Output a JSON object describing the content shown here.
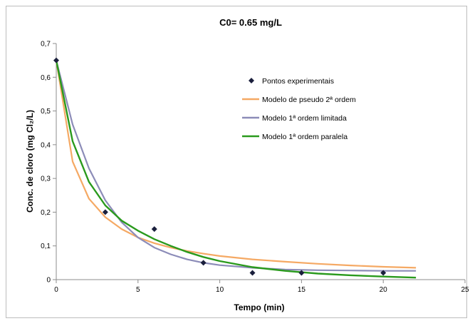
{
  "chart_data": {
    "type": "line",
    "title": "C0= 0.65 mg/L",
    "xlabel": "Tempo (min)",
    "ylabel": "Conc. de cloro (mg Cl₂/L)",
    "xlim": [
      0,
      25
    ],
    "ylim": [
      0,
      0.7
    ],
    "xticks": [
      0,
      5,
      10,
      15,
      20,
      25
    ],
    "yticks": [
      "0",
      "0,1",
      "0,2",
      "0,3",
      "0,4",
      "0,5",
      "0,6",
      "0,7"
    ],
    "grid": false,
    "legend_position": "upper-right",
    "series": [
      {
        "name": "Pontos experimentais",
        "kind": "scatter",
        "marker": "diamond",
        "color": "#1a1f3c",
        "x": [
          0,
          3,
          6,
          9,
          12,
          15,
          20
        ],
        "y": [
          0.65,
          0.2,
          0.15,
          0.05,
          0.02,
          0.02,
          0.02
        ]
      },
      {
        "name": "Modelo de pseudo 2ª ordem",
        "kind": "line",
        "color": "#f5a964",
        "x": [
          0,
          1,
          2,
          3,
          4,
          5,
          6,
          7,
          8,
          9,
          10,
          12,
          14,
          16,
          18,
          20,
          22
        ],
        "y": [
          0.65,
          0.35,
          0.24,
          0.185,
          0.15,
          0.125,
          0.108,
          0.095,
          0.085,
          0.077,
          0.07,
          0.06,
          0.053,
          0.047,
          0.042,
          0.038,
          0.035
        ]
      },
      {
        "name": "Modelo 1ª ordem limitada",
        "kind": "line",
        "color": "#8c8cb8",
        "x": [
          0,
          1,
          2,
          3,
          4,
          5,
          6,
          7,
          8,
          9,
          10,
          12,
          14,
          16,
          18,
          20,
          22
        ],
        "y": [
          0.65,
          0.46,
          0.33,
          0.235,
          0.17,
          0.125,
          0.095,
          0.075,
          0.06,
          0.05,
          0.043,
          0.035,
          0.03,
          0.028,
          0.027,
          0.026,
          0.026
        ]
      },
      {
        "name": "Modelo 1ª ordem paralela",
        "kind": "line",
        "color": "#2a9a1d",
        "x": [
          0,
          1,
          2,
          3,
          4,
          5,
          6,
          7,
          8,
          9,
          10,
          12,
          14,
          16,
          18,
          20,
          22
        ],
        "y": [
          0.65,
          0.41,
          0.29,
          0.22,
          0.175,
          0.145,
          0.12,
          0.1,
          0.082,
          0.067,
          0.055,
          0.037,
          0.026,
          0.018,
          0.013,
          0.009,
          0.006
        ]
      }
    ]
  }
}
